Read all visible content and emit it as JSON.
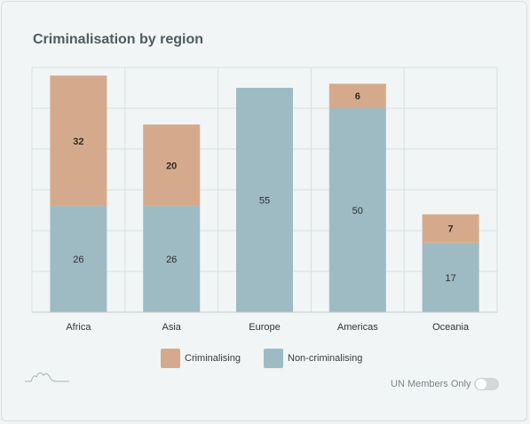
{
  "title": "Criminalisation by region",
  "chart_data": {
    "type": "bar",
    "stacked": true,
    "categories": [
      "Africa",
      "Asia",
      "Europe",
      "Americas",
      "Oceania"
    ],
    "series": [
      {
        "name": "Non-criminalising",
        "color": "#9ebbc4",
        "values": [
          26,
          26,
          55,
          50,
          17
        ]
      },
      {
        "name": "Criminalising",
        "color": "#d5aa8c",
        "values": [
          32,
          20,
          0,
          6,
          7
        ]
      }
    ],
    "ylim": [
      0,
      60
    ],
    "grid": true,
    "legend_position": "bottom"
  },
  "legend": [
    {
      "label": "Criminalising",
      "color": "#d5aa8c"
    },
    {
      "label": "Non-criminalising",
      "color": "#9ebbc4"
    }
  ],
  "toggle": {
    "label": "UN Members Only",
    "on": false
  }
}
